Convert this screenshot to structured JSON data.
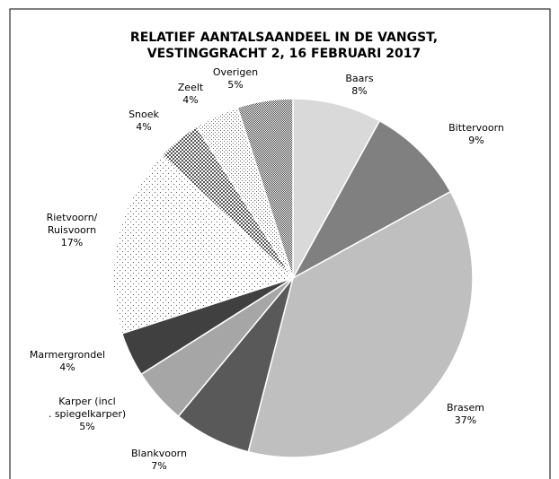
{
  "chart_data": {
    "type": "pie",
    "title": [
      "RELATIEF AANTALSAANDEEL IN DE VANGST,",
      "VESTINGGRACHT 2, 16 FEBRUARI 2017"
    ],
    "categories": [
      "Baars",
      "Bittervoorn",
      "Brasem",
      "Blankvoorn",
      "Karper (incl. spiegelkarper)",
      "Marmergrondel",
      "Rietvoorn/ Ruisvoorn",
      "Snoek",
      "Zeelt",
      "Overigen"
    ],
    "values": [
      8,
      9,
      37,
      7,
      5,
      4,
      17,
      4,
      4,
      5
    ],
    "value_labels": [
      "8%",
      "9%",
      "37%",
      "7%",
      "5%",
      "4%",
      "17%",
      "4%",
      "4%",
      "5%"
    ],
    "colors": [
      "#d9d9d9",
      "#808080",
      "#bfbfbf",
      "#595959",
      "#a6a6a6",
      "#404040",
      "#ffffff",
      "#7f7f7f",
      "#ffffff",
      "#8c8c8c"
    ],
    "patterns": [
      null,
      null,
      null,
      null,
      null,
      null,
      "sparse-dots",
      "checker",
      "dots",
      "dense"
    ]
  }
}
